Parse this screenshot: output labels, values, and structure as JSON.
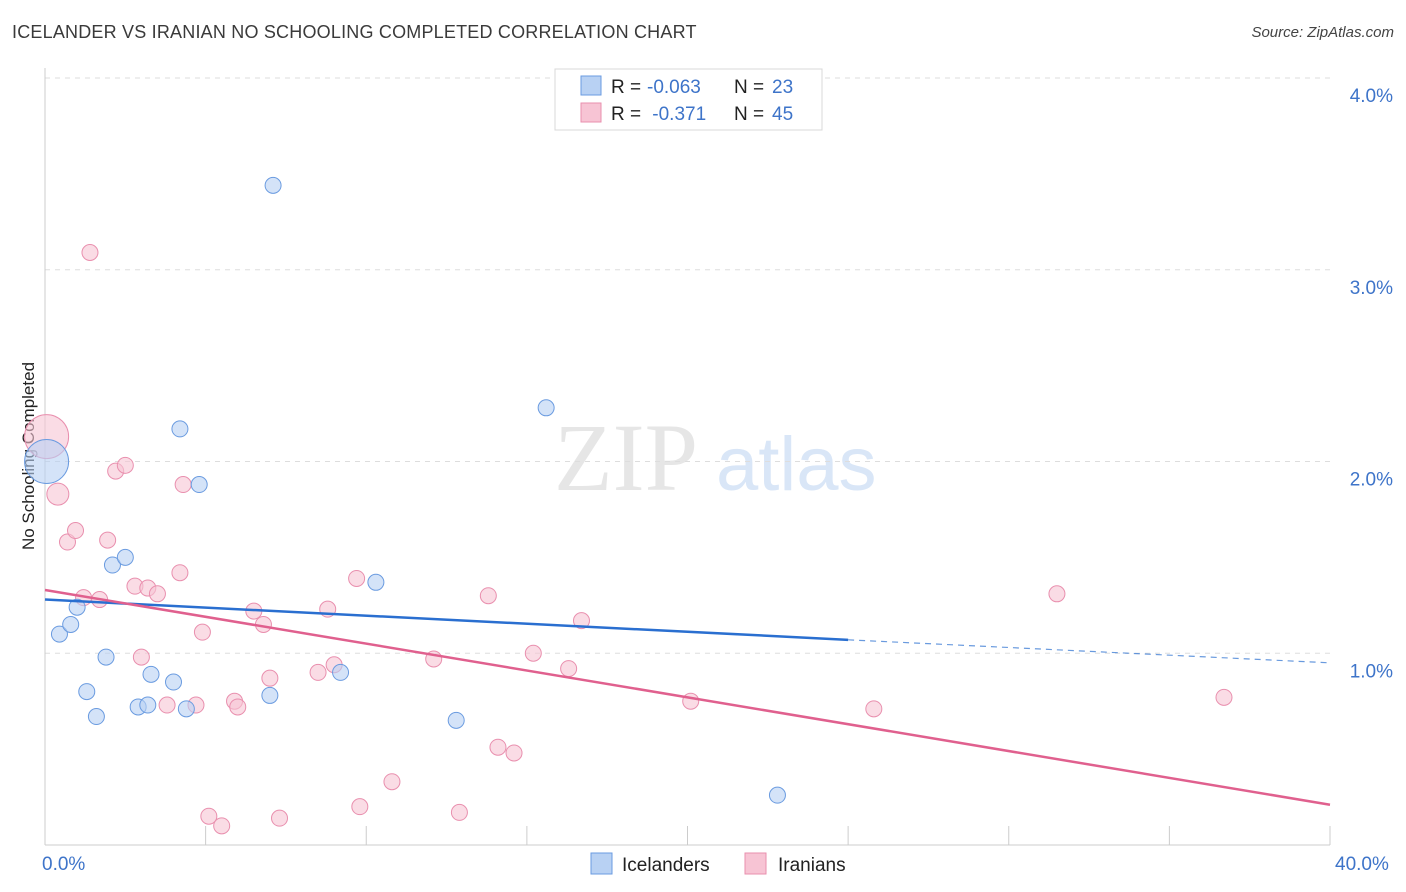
{
  "header": {
    "title": "ICELANDER VS IRANIAN NO SCHOOLING COMPLETED CORRELATION CHART",
    "source": "Source: ZipAtlas.com"
  },
  "watermark": {
    "zip": "ZIP",
    "atlas": "atlas"
  },
  "colors": {
    "icelanders_fill": "#b8d1f3",
    "icelanders_stroke": "#6a9be0",
    "icelanders_line": "#2a6fd0",
    "iranians_fill": "#f7c4d4",
    "iranians_stroke": "#e98fae",
    "iranians_line": "#e0608e",
    "axis_text": "#3e74c9",
    "grid": "#dddddd"
  },
  "stats_legend": {
    "rows": [
      {
        "r_label": "R = ",
        "r_value": "-0.063",
        "n_label": "N = ",
        "n_value": "23"
      },
      {
        "r_label": "R = ",
        "r_value": " -0.371",
        "n_label": "N = ",
        "n_value": "45"
      }
    ]
  },
  "bottom_legend": [
    "Icelanders",
    "Iranians"
  ],
  "chart_data": {
    "type": "scatter",
    "title": "ICELANDER VS IRANIAN NO SCHOOLING COMPLETED CORRELATION CHART",
    "xlabel": "",
    "ylabel": "No Schooling Completed",
    "xlim": [
      0,
      40
    ],
    "ylim": [
      0,
      4.0
    ],
    "x_tick_labels": [
      "0.0%",
      "40.0%"
    ],
    "y_ticks": [
      1.0,
      2.0,
      3.0,
      4.0
    ],
    "y_tick_labels": [
      "1.0%",
      "2.0%",
      "3.0%",
      "4.0%"
    ],
    "grid": true,
    "series": [
      {
        "name": "Icelanders",
        "r": -0.063,
        "n": 23,
        "trend": {
          "x0": 0,
          "y0": 1.28,
          "x1": 25,
          "y1": 1.07,
          "dashed_to_x": 40,
          "dashed_to_y": 0.95
        },
        "points": [
          {
            "x": 0.05,
            "y": 2.0,
            "big": true
          },
          {
            "x": 0.45,
            "y": 1.1
          },
          {
            "x": 0.8,
            "y": 1.15
          },
          {
            "x": 1.0,
            "y": 1.24
          },
          {
            "x": 1.3,
            "y": 0.8
          },
          {
            "x": 1.6,
            "y": 0.67
          },
          {
            "x": 1.9,
            "y": 0.98
          },
          {
            "x": 2.1,
            "y": 1.46
          },
          {
            "x": 2.5,
            "y": 1.5
          },
          {
            "x": 2.9,
            "y": 0.72
          },
          {
            "x": 3.2,
            "y": 0.73
          },
          {
            "x": 3.3,
            "y": 0.89
          },
          {
            "x": 4.0,
            "y": 0.85
          },
          {
            "x": 4.2,
            "y": 2.17
          },
          {
            "x": 4.4,
            "y": 0.71
          },
          {
            "x": 4.8,
            "y": 1.88
          },
          {
            "x": 7.0,
            "y": 0.78
          },
          {
            "x": 7.1,
            "y": 3.44
          },
          {
            "x": 9.2,
            "y": 0.9
          },
          {
            "x": 10.3,
            "y": 1.37
          },
          {
            "x": 12.8,
            "y": 0.65
          },
          {
            "x": 15.6,
            "y": 2.28
          },
          {
            "x": 22.8,
            "y": 0.26
          }
        ]
      },
      {
        "name": "Iranians",
        "r": -0.371,
        "n": 45,
        "trend": {
          "x0": 0,
          "y0": 1.33,
          "x1": 40,
          "y1": 0.21
        },
        "points": [
          {
            "x": 0.05,
            "y": 2.13,
            "big": true
          },
          {
            "x": 0.4,
            "y": 1.83,
            "medium": true
          },
          {
            "x": 0.7,
            "y": 1.58
          },
          {
            "x": 0.95,
            "y": 1.64
          },
          {
            "x": 1.2,
            "y": 1.29
          },
          {
            "x": 1.4,
            "y": 3.09
          },
          {
            "x": 1.7,
            "y": 1.28
          },
          {
            "x": 1.95,
            "y": 1.59
          },
          {
            "x": 2.2,
            "y": 1.95
          },
          {
            "x": 2.5,
            "y": 1.98
          },
          {
            "x": 2.8,
            "y": 1.35
          },
          {
            "x": 3.0,
            "y": 0.98
          },
          {
            "x": 3.2,
            "y": 1.34
          },
          {
            "x": 3.5,
            "y": 1.31
          },
          {
            "x": 3.8,
            "y": 0.73
          },
          {
            "x": 4.2,
            "y": 1.42
          },
          {
            "x": 4.3,
            "y": 1.88
          },
          {
            "x": 4.7,
            "y": 0.73
          },
          {
            "x": 4.9,
            "y": 1.11
          },
          {
            "x": 5.1,
            "y": 0.15
          },
          {
            "x": 5.5,
            "y": 0.1
          },
          {
            "x": 5.9,
            "y": 0.75
          },
          {
            "x": 6.5,
            "y": 1.22
          },
          {
            "x": 6.8,
            "y": 1.15
          },
          {
            "x": 7.0,
            "y": 0.87
          },
          {
            "x": 7.3,
            "y": 0.14
          },
          {
            "x": 8.5,
            "y": 0.9
          },
          {
            "x": 8.8,
            "y": 1.23
          },
          {
            "x": 9.0,
            "y": 0.94
          },
          {
            "x": 9.7,
            "y": 1.39
          },
          {
            "x": 9.8,
            "y": 0.2
          },
          {
            "x": 10.8,
            "y": 0.33
          },
          {
            "x": 12.1,
            "y": 0.97
          },
          {
            "x": 12.9,
            "y": 0.17
          },
          {
            "x": 13.8,
            "y": 1.3
          },
          {
            "x": 14.1,
            "y": 0.51
          },
          {
            "x": 14.6,
            "y": 0.48
          },
          {
            "x": 15.2,
            "y": 1.0
          },
          {
            "x": 16.3,
            "y": 0.92
          },
          {
            "x": 16.7,
            "y": 1.17
          },
          {
            "x": 20.1,
            "y": 0.75
          },
          {
            "x": 25.8,
            "y": 0.71
          },
          {
            "x": 31.5,
            "y": 1.31
          },
          {
            "x": 36.7,
            "y": 0.77
          },
          {
            "x": 6.0,
            "y": 0.72
          }
        ]
      }
    ]
  }
}
